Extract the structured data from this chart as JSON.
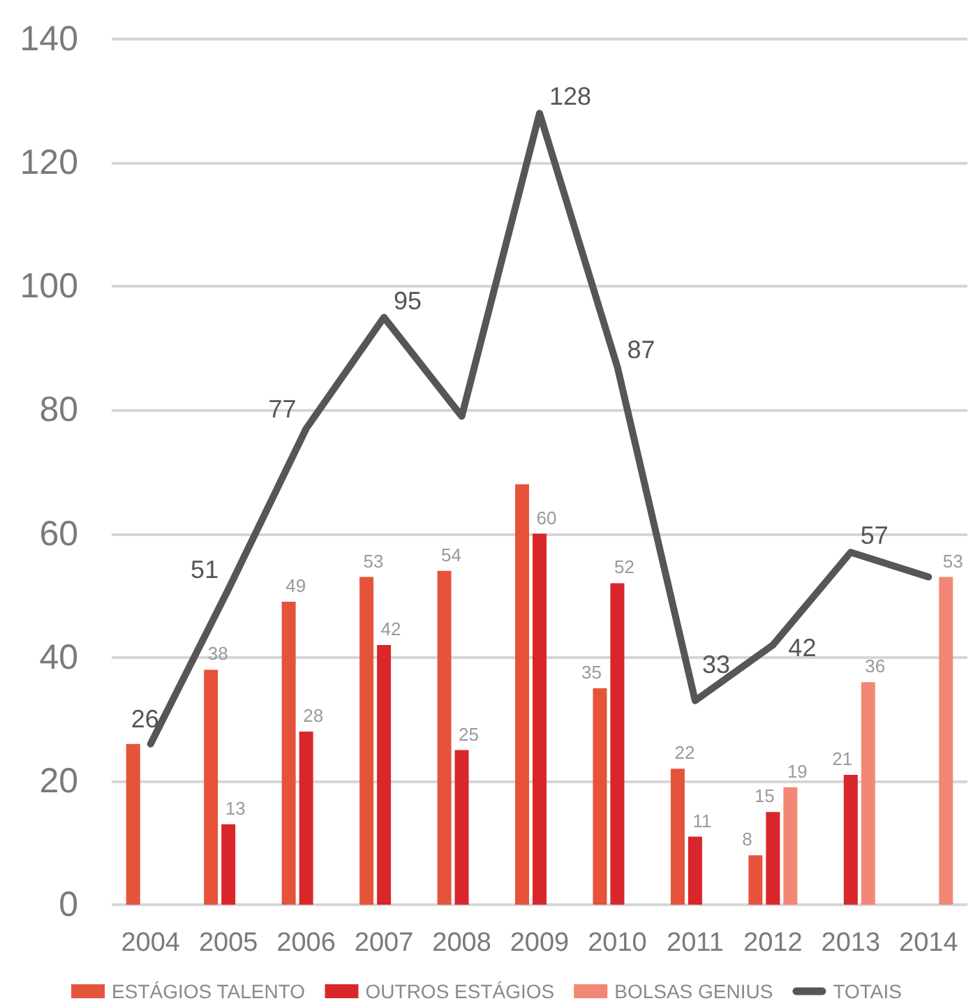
{
  "chart_data": {
    "type": "bar",
    "categories": [
      "2004",
      "2005",
      "2006",
      "2007",
      "2008",
      "2009",
      "2010",
      "2011",
      "2012",
      "2013",
      "2014"
    ],
    "ylim": [
      0,
      140
    ],
    "yticks": [
      0,
      20,
      40,
      60,
      80,
      100,
      120,
      140
    ],
    "grid": "y",
    "legend": "bottom",
    "marker": "none",
    "line_style": "solid",
    "series": [
      {
        "name": "ESTÁGIOS TALENTO",
        "color": "#e5533a",
        "values": [
          26,
          38,
          49,
          53,
          54,
          68,
          35,
          22,
          8,
          null,
          null
        ],
        "value_labels": [
          null,
          "38",
          "49",
          "53",
          "54",
          null,
          "35",
          "22",
          "8",
          null,
          null
        ]
      },
      {
        "name": "OUTROS ESTÁGIOS",
        "color": "#d9262b",
        "values": [
          null,
          13,
          28,
          42,
          25,
          60,
          52,
          11,
          15,
          21,
          null
        ],
        "value_labels": [
          null,
          "13",
          "28",
          "42",
          "25",
          "60",
          "52",
          "11",
          "15",
          "21",
          null
        ]
      },
      {
        "name": "BOLSAS GENIUS",
        "color": "#f38776",
        "values": [
          null,
          null,
          null,
          null,
          null,
          null,
          null,
          null,
          19,
          36,
          53
        ],
        "value_labels": [
          null,
          null,
          null,
          null,
          null,
          null,
          null,
          null,
          "19",
          "36",
          "53"
        ]
      },
      {
        "name": "TOTAIS",
        "type": "line",
        "color": "#565656",
        "values": [
          26,
          51,
          77,
          95,
          79,
          128,
          87,
          33,
          42,
          57,
          53
        ],
        "value_labels": [
          "26",
          "51",
          "77",
          "95",
          null,
          "128",
          "87",
          "33",
          "42",
          "57",
          null
        ]
      }
    ]
  }
}
